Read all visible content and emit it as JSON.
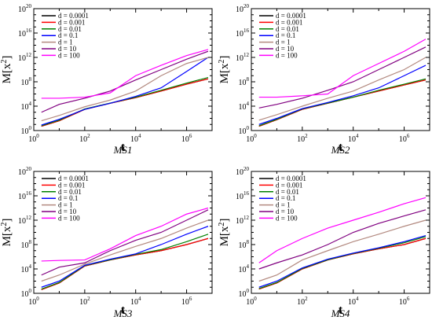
{
  "chart_data": [
    {
      "type": "line",
      "caption": "MS1",
      "xlabel": "t",
      "ylabel": "M[x^2]",
      "xscale": "log",
      "yscale": "log",
      "xlim": [
        1,
        10000000
      ],
      "ylim": [
        1,
        1e+20
      ],
      "xticks": [
        "10^0",
        "10^2",
        "10^4",
        "10^6"
      ],
      "yticks": [
        "10^0",
        "10^4",
        "10^8",
        "10^12",
        "10^16",
        "10^20"
      ],
      "legend": "top-left",
      "series": [
        {
          "name": "d = 0.0001",
          "color": "#000000",
          "x": [
            2,
            10,
            100,
            1000,
            10000,
            100000,
            1000000,
            7000000
          ],
          "y": [
            5,
            40,
            3000,
            30000,
            250000,
            3000000,
            40000000,
            300000000.0
          ]
        },
        {
          "name": "d = 0.001",
          "color": "#ff0000",
          "x": [
            2,
            10,
            100,
            1000,
            10000,
            100000,
            1000000,
            7000000
          ],
          "y": [
            5,
            40,
            3000,
            30000,
            250000,
            3000000,
            40000000,
            300000000.0
          ]
        },
        {
          "name": "d = 0.01",
          "color": "#008000",
          "x": [
            2,
            10,
            100,
            1000,
            10000,
            100000,
            1000000,
            7000000
          ],
          "y": [
            6,
            50,
            3500,
            32000,
            300000,
            4000000,
            60000000,
            500000000.0
          ]
        },
        {
          "name": "d = 0.1",
          "color": "#0000ff",
          "x": [
            2,
            10,
            100,
            1000,
            10000,
            100000,
            1000000,
            7000000
          ],
          "y": [
            8,
            70,
            3000,
            30000,
            400000,
            10000000,
            5000000000.0,
            1000000000000.0
          ]
        },
        {
          "name": "d = 1",
          "color": "#b38a80",
          "x": [
            2,
            10,
            100,
            1000,
            10000,
            100000,
            1000000,
            7000000
          ],
          "y": [
            40,
            300,
            8000,
            100000,
            3000000,
            1000000000.0,
            100000000000.0,
            1000000000000.0
          ]
        },
        {
          "name": "d = 10",
          "color": "#800080",
          "x": [
            2,
            10,
            100,
            1000,
            10000,
            100000,
            1000000,
            7000000
          ],
          "y": [
            1000,
            20000,
            200000,
            3000000,
            200000000.0,
            10000000000.0,
            500000000000.0,
            10000000000000.0
          ]
        },
        {
          "name": "d = 100",
          "color": "#ff00ff",
          "x": [
            2,
            10,
            100,
            1000,
            10000,
            100000,
            1000000,
            7000000
          ],
          "y": [
            200000,
            200000,
            300000,
            1500000,
            1000000000.0,
            50000000000.0,
            2000000000000.0,
            20000000000000.0
          ]
        }
      ]
    },
    {
      "type": "line",
      "caption": "MS2",
      "xlabel": "t",
      "ylabel": "M[x^2]",
      "xscale": "log",
      "yscale": "log",
      "xlim": [
        1,
        10000000
      ],
      "ylim": [
        1,
        1e+20
      ],
      "xticks": [
        "10^0",
        "10^2",
        "10^4",
        "10^6"
      ],
      "yticks": [
        "10^0",
        "10^4",
        "10^8",
        "10^12",
        "10^16",
        "10^20"
      ],
      "legend": "top-left",
      "series": [
        {
          "name": "d = 0.0001",
          "color": "#000000",
          "x": [
            2,
            10,
            100,
            1000,
            10000,
            100000,
            1000000,
            7000000
          ],
          "y": [
            5,
            60,
            3000,
            30000,
            300000,
            3000000,
            30000000,
            200000000.0
          ]
        },
        {
          "name": "d = 0.001",
          "color": "#ff0000",
          "x": [
            2,
            10,
            100,
            1000,
            10000,
            100000,
            1000000,
            7000000
          ],
          "y": [
            5,
            60,
            3000,
            30000,
            300000,
            3000000,
            30000000,
            200000000.0
          ]
        },
        {
          "name": "d = 0.01",
          "color": "#008000",
          "x": [
            2,
            10,
            100,
            1000,
            10000,
            100000,
            1000000,
            7000000
          ],
          "y": [
            6,
            70,
            3500,
            32000,
            300000,
            4000000,
            40000000,
            300000000.0
          ]
        },
        {
          "name": "d = 0.1",
          "color": "#0000ff",
          "x": [
            2,
            10,
            100,
            1000,
            10000,
            100000,
            1000000,
            7000000
          ],
          "y": [
            10,
            100,
            4000,
            40000,
            500000,
            10000000,
            1000000000.0,
            50000000000.0
          ]
        },
        {
          "name": "d = 1",
          "color": "#b38a80",
          "x": [
            2,
            10,
            100,
            1000,
            10000,
            100000,
            1000000,
            7000000
          ],
          "y": [
            50,
            400,
            10000,
            200000,
            3000000,
            200000000.0,
            10000000000.0,
            1000000000000.0
          ]
        },
        {
          "name": "d = 10",
          "color": "#800080",
          "x": [
            2,
            10,
            100,
            1000,
            10000,
            100000,
            1000000,
            7000000
          ],
          "y": [
            5000,
            20000,
            200000,
            4000000,
            100000000.0,
            10000000000.0,
            1000000000000.0,
            50000000000000.0
          ]
        },
        {
          "name": "d = 100",
          "color": "#ff00ff",
          "x": [
            2,
            10,
            100,
            1000,
            10000,
            100000,
            1000000,
            7000000
          ],
          "y": [
            300000,
            300000,
            500000,
            1000000,
            1000000000.0,
            100000000000.0,
            10000000000000.0,
            1000000000000000.0
          ]
        }
      ]
    },
    {
      "type": "line",
      "caption": "MS3",
      "xlabel": "t",
      "ylabel": "M[x^2]",
      "xscale": "log",
      "yscale": "log",
      "xlim": [
        1,
        10000000
      ],
      "ylim": [
        1,
        1e+20
      ],
      "xticks": [
        "10^0",
        "10^2",
        "10^4",
        "10^6"
      ],
      "yticks": [
        "10^0",
        "10^4",
        "10^8",
        "10^12",
        "10^16",
        "10^20"
      ],
      "legend": "top-left",
      "series": [
        {
          "name": "d = 0.0001",
          "color": "#000000",
          "x": [
            2,
            10,
            100,
            1000,
            10000,
            100000,
            1000000,
            7000000
          ],
          "y": [
            4,
            50,
            30000,
            300000,
            2000000,
            10000000,
            100000000.0,
            1000000000.0
          ]
        },
        {
          "name": "d = 0.001",
          "color": "#ff0000",
          "x": [
            2,
            10,
            100,
            1000,
            10000,
            100000,
            1000000,
            7000000
          ],
          "y": [
            4,
            50,
            30000,
            300000,
            2000000,
            10000000,
            100000000.0,
            1000000000.0
          ]
        },
        {
          "name": "d = 0.01",
          "color": "#008000",
          "x": [
            2,
            10,
            100,
            1000,
            10000,
            100000,
            1000000,
            7000000
          ],
          "y": [
            5,
            60,
            35000,
            320000,
            2500000,
            15000000,
            300000000.0,
            5000000000.0
          ]
        },
        {
          "name": "d = 0.1",
          "color": "#0000ff",
          "x": [
            2,
            10,
            100,
            1000,
            10000,
            100000,
            1000000,
            7000000
          ],
          "y": [
            10,
            100,
            40000,
            400000,
            3000000,
            100000000.0,
            5000000000.0,
            100000000000.0
          ]
        },
        {
          "name": "d = 1",
          "color": "#b38a80",
          "x": [
            2,
            10,
            100,
            1000,
            10000,
            100000,
            1000000,
            7000000
          ],
          "y": [
            100,
            1000,
            60000,
            2000000,
            50000000,
            1000000000.0,
            50000000000.0,
            1000000000000.0
          ]
        },
        {
          "name": "d = 10",
          "color": "#800080",
          "x": [
            2,
            10,
            100,
            1000,
            10000,
            100000,
            1000000,
            7000000
          ],
          "y": [
            1000,
            20000,
            100000,
            10000000,
            500000000.0,
            10000000000.0,
            1000000000000.0,
            50000000000000.0
          ]
        },
        {
          "name": "d = 100",
          "color": "#ff00ff",
          "x": [
            2,
            10,
            100,
            1000,
            10000,
            100000,
            1000000,
            7000000
          ],
          "y": [
            200000,
            250000,
            300000,
            20000000,
            3000000000.0,
            100000000000.0,
            10000000000000.0,
            100000000000000.0
          ]
        }
      ]
    },
    {
      "type": "line",
      "caption": "MS4",
      "xlabel": "t",
      "ylabel": "M[x^2]",
      "xscale": "log",
      "yscale": "log",
      "xlim": [
        1,
        10000000
      ],
      "ylim": [
        1,
        1e+20
      ],
      "xticks": [
        "10^0",
        "10^2",
        "10^4",
        "10^6"
      ],
      "yticks": [
        "10^0",
        "10^4",
        "10^8",
        "10^12",
        "10^16",
        "10^20"
      ],
      "legend": "top-left",
      "series": [
        {
          "name": "d = 0.0001",
          "color": "#000000",
          "x": [
            2,
            10,
            100,
            1000,
            10000,
            100000,
            1000000,
            7000000
          ],
          "y": [
            5,
            50,
            10000,
            300000,
            3000000,
            20000000,
            100000000.0,
            1000000000.0
          ]
        },
        {
          "name": "d = 0.001",
          "color": "#ff0000",
          "x": [
            2,
            10,
            100,
            1000,
            10000,
            100000,
            1000000,
            7000000
          ],
          "y": [
            5,
            50,
            10000,
            300000,
            3000000,
            20000000,
            100000000.0,
            1000000000.0
          ]
        },
        {
          "name": "d = 0.01",
          "color": "#008000",
          "x": [
            2,
            10,
            100,
            1000,
            10000,
            100000,
            1000000,
            7000000
          ],
          "y": [
            6,
            60,
            12000,
            320000,
            3500000,
            25000000,
            200000000.0,
            2000000000.0
          ]
        },
        {
          "name": "d = 0.1",
          "color": "#0000ff",
          "x": [
            2,
            10,
            100,
            1000,
            10000,
            100000,
            1000000,
            7000000
          ],
          "y": [
            10,
            100,
            15000,
            400000,
            4000000,
            30000000,
            300000000.0,
            3000000000.0
          ]
        },
        {
          "name": "d = 1",
          "color": "#b38a80",
          "x": [
            2,
            10,
            100,
            1000,
            10000,
            100000,
            1000000,
            7000000
          ],
          "y": [
            100,
            1000,
            300000,
            10000000,
            300000000.0,
            5000000000.0,
            100000000000.0,
            1000000000000.0
          ]
        },
        {
          "name": "d = 10",
          "color": "#800080",
          "x": [
            2,
            10,
            100,
            1000,
            10000,
            100000,
            1000000,
            7000000
          ],
          "y": [
            10000,
            100000,
            2000000,
            100000000.0,
            10000000000.0,
            300000000000.0,
            5000000000000.0,
            50000000000000.0
          ]
        },
        {
          "name": "d = 100",
          "color": "#ff00ff",
          "x": [
            2,
            10,
            100,
            1000,
            10000,
            100000,
            1000000,
            7000000
          ],
          "y": [
            100000,
            10000000,
            1000000000.0,
            50000000000.0,
            1000000000000.0,
            20000000000000.0,
            500000000000000.0,
            5000000000000000.0
          ]
        }
      ]
    }
  ]
}
